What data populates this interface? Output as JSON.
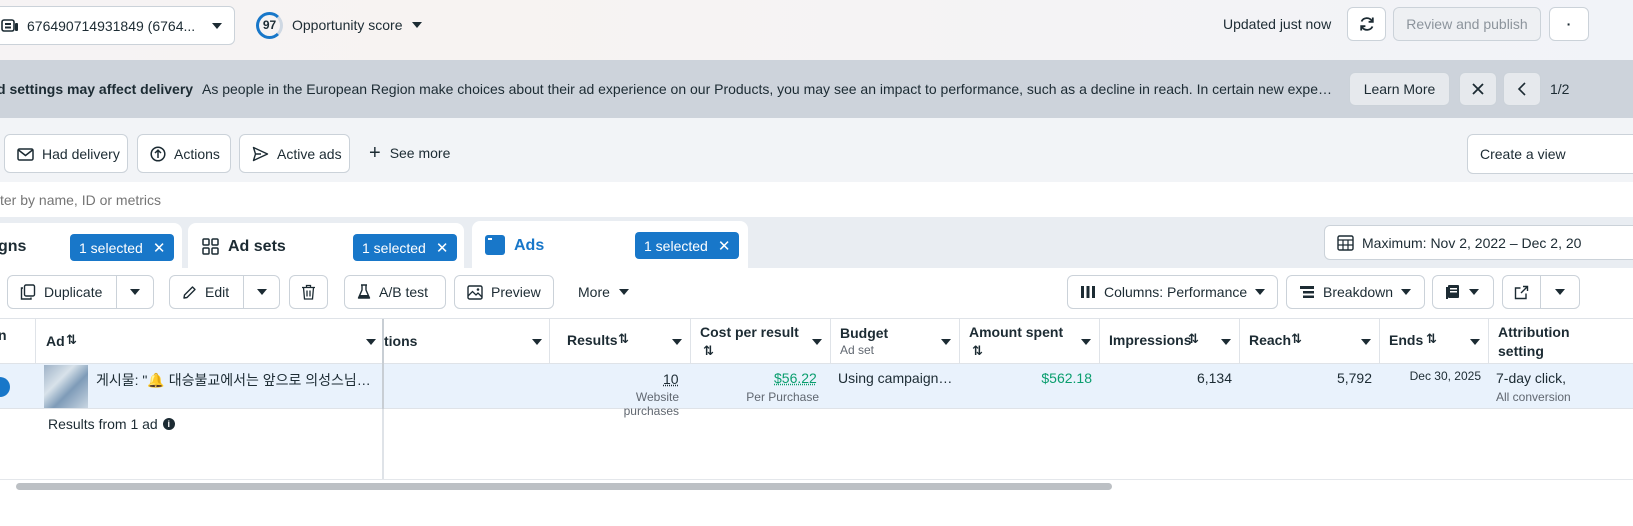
{
  "topbar": {
    "account_label": "676490714931849 (6764...",
    "opportunity_score": "97",
    "opportunity_label": "Opportunity score",
    "updated_text": "Updated just now",
    "review_publish_label": "Review and publish"
  },
  "banner": {
    "title": "d settings may affect delivery",
    "message": "As people in the European Region make choices about their ad experience on our Products, you may see an impact to performance, such as a decline in reach. In certain new experience…",
    "learn_more_label": "Learn More",
    "pager_text": "1/2"
  },
  "filters": {
    "had_delivery": "Had delivery",
    "actions": "Actions",
    "active_ads": "Active ads",
    "see_more": "See more",
    "create_view": "Create a view"
  },
  "search": {
    "placeholder": "ter by name, ID or metrics"
  },
  "tabs": {
    "campaigns_label": "gns",
    "campaigns_selected": "1 selected",
    "adsets_label": "Ad sets",
    "adsets_selected": "1 selected",
    "ads_label": "Ads",
    "ads_selected": "1 selected",
    "date_range": "Maximum: Nov 2, 2022 – Dec 2, 20"
  },
  "toolbar": {
    "duplicate": "Duplicate",
    "edit": "Edit",
    "ab_test": "A/B test",
    "preview": "Preview",
    "more": "More",
    "columns": "Columns: Performance",
    "breakdown": "Breakdown"
  },
  "table": {
    "headers": {
      "col0": "n",
      "ad": "Ad",
      "actions": "tions",
      "results": "Results",
      "cost_per_result": "Cost per result",
      "budget": "Budget",
      "budget_sub": "Ad set",
      "amount_spent": "Amount spent",
      "impressions": "Impressions",
      "reach": "Reach",
      "ends": "Ends",
      "attribution": "Attribution",
      "attribution2": "setting"
    },
    "row": {
      "ad_name": "게시물: \"🔔 대승불교에서는 앞으로 의성스님…",
      "results": "10",
      "results_sub": "Website purchases",
      "cost_per_result": "$56.22",
      "cost_sub": "Per Purchase",
      "budget": "Using campaign…",
      "amount_spent": "$562.18",
      "impressions": "6,134",
      "reach": "5,792",
      "ends": "Dec 30, 2025",
      "attribution": "7-day click,",
      "attribution_sub": "All conversion"
    },
    "footer": "Results from 1 ad"
  },
  "colors": {
    "accent_blue": "#1877c9",
    "green": "#0a9e6e",
    "banner_bg": "#cdd3db"
  }
}
